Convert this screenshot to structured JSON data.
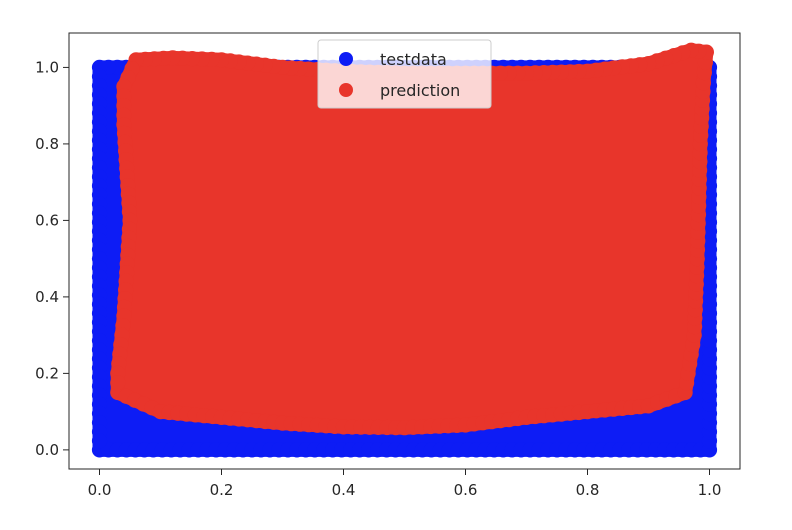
{
  "chart_data": {
    "type": "scatter",
    "title": "",
    "xlabel": "",
    "ylabel": "",
    "xlim": [
      -0.05,
      1.05
    ],
    "ylim": [
      -0.05,
      1.09
    ],
    "xticks": [
      "0.0",
      "0.2",
      "0.4",
      "0.6",
      "0.8",
      "1.0"
    ],
    "yticks": [
      "0.0",
      "0.2",
      "0.4",
      "0.6",
      "0.8",
      "1.0"
    ],
    "grid": false,
    "legend_position": "upper center",
    "series": [
      {
        "name": "testdata",
        "color": "#0d1cf5",
        "marker": "circle",
        "outline": [
          [
            0.0,
            0.0
          ],
          [
            1.0,
            0.0
          ],
          [
            1.0,
            1.0
          ],
          [
            0.0,
            1.0
          ]
        ]
      },
      {
        "name": "prediction",
        "color": "#e8352b",
        "marker": "circle",
        "outline": [
          [
            0.03,
            0.15
          ],
          [
            0.1,
            0.1
          ],
          [
            0.2,
            0.085
          ],
          [
            0.3,
            0.07
          ],
          [
            0.4,
            0.06
          ],
          [
            0.5,
            0.058
          ],
          [
            0.6,
            0.065
          ],
          [
            0.7,
            0.085
          ],
          [
            0.8,
            0.1
          ],
          [
            0.9,
            0.115
          ],
          [
            0.96,
            0.15
          ],
          [
            0.975,
            0.3
          ],
          [
            0.98,
            0.5
          ],
          [
            0.985,
            0.8
          ],
          [
            0.99,
            0.96
          ],
          [
            0.995,
            1.04
          ],
          [
            0.97,
            1.045
          ],
          [
            0.9,
            1.01
          ],
          [
            0.8,
            0.99
          ],
          [
            0.7,
            0.985
          ],
          [
            0.6,
            0.985
          ],
          [
            0.5,
            0.985
          ],
          [
            0.4,
            0.99
          ],
          [
            0.3,
            1.0
          ],
          [
            0.2,
            1.02
          ],
          [
            0.12,
            1.025
          ],
          [
            0.06,
            1.02
          ],
          [
            0.04,
            0.95
          ],
          [
            0.04,
            0.85
          ],
          [
            0.05,
            0.6
          ],
          [
            0.04,
            0.35
          ],
          [
            0.03,
            0.2
          ]
        ]
      }
    ]
  }
}
